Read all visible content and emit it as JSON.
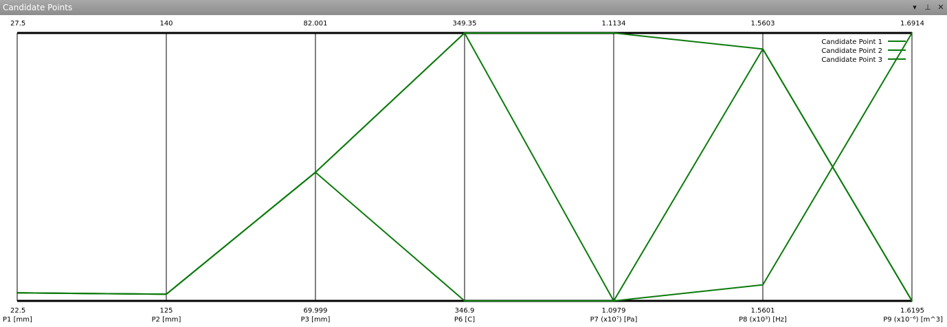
{
  "window": {
    "title": "Candidate Points",
    "icons": [
      "chevron-down-icon",
      "pin-icon",
      "close-icon"
    ],
    "menu_glyph": "▾",
    "pin_glyph": "⊥",
    "close_glyph": "✕"
  },
  "colors": {
    "titlebar": "#999999",
    "series": "#0a7a0a",
    "axis": "#000000"
  },
  "chart_data": {
    "type": "parallel-coordinates",
    "title": "Candidate Points",
    "axes": [
      {
        "name": "P1 [mm]",
        "min": "22.5",
        "max": "27.5"
      },
      {
        "name": "P2 [mm]",
        "min": "125",
        "max": "140"
      },
      {
        "name": "P3 [mm]",
        "min": "69.999",
        "max": "82.001"
      },
      {
        "name": "P6 [C]",
        "min": "346.9",
        "max": "349.35"
      },
      {
        "name": "P7 (x10⁷) [Pa]",
        "min": "1.0979",
        "max": "1.1134"
      },
      {
        "name": "P8 (x10³) [Hz]",
        "min": "1.5601",
        "max": "1.5603"
      },
      {
        "name": "P9 (x10⁻⁶) [m^3]",
        "min": "1.6195",
        "max": "1.6914"
      }
    ],
    "series": [
      {
        "name": "Candidate Point 1",
        "values": [
          0.03,
          0.025,
          0.48,
          1.0,
          1.0,
          0.94,
          0.0
        ]
      },
      {
        "name": "Candidate Point 2",
        "values": [
          0.03,
          0.025,
          0.48,
          1.0,
          0.0,
          0.06,
          1.0
        ]
      },
      {
        "name": "Candidate Point 3",
        "values": [
          0.03,
          0.025,
          0.48,
          0.0,
          0.0,
          0.94,
          0.0
        ]
      }
    ],
    "value_scale": "normalized 0 (axis min) to 1 (axis max)",
    "legend": {
      "position": "top-right"
    },
    "grid": false
  }
}
